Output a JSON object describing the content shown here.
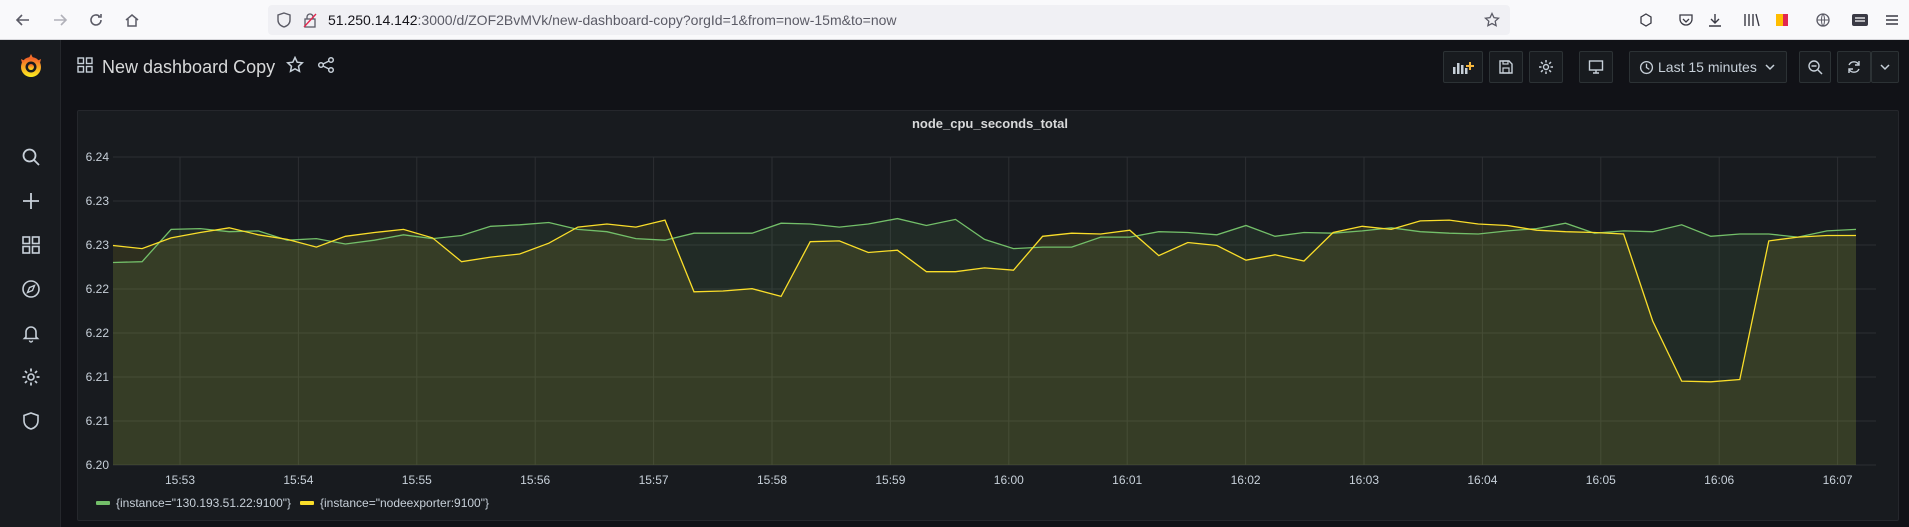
{
  "browser": {
    "url_host": "51.250.14.142",
    "url_path": ":3000/d/ZOF2BvMVk/new-dashboard-copy?orgId=1&from=now-15m&to=now"
  },
  "sidebar": {
    "items": [
      {
        "name": "search-icon"
      },
      {
        "name": "plus-icon"
      },
      {
        "name": "dashboards-icon"
      },
      {
        "name": "compass-icon"
      },
      {
        "name": "bell-icon"
      },
      {
        "name": "gear-icon"
      },
      {
        "name": "shield-icon"
      }
    ]
  },
  "header": {
    "title": "New dashboard Copy",
    "time_range": "Last 15 minutes"
  },
  "colors": {
    "series1": "#73bf69",
    "series2": "#fade2a",
    "background": "#111217",
    "panel": "#181b1f"
  },
  "chart_data": {
    "type": "area",
    "title": "node_cpu_seconds_total",
    "xlabel": "",
    "ylabel": "",
    "ylim": [
      6.2,
      6.24
    ],
    "yticks": [
      "6.24",
      "6.23",
      "6.23",
      "6.22",
      "6.22",
      "6.21",
      "6.21",
      "6.20"
    ],
    "xticks": [
      "15:53",
      "15:54",
      "15:55",
      "15:56",
      "15:57",
      "15:58",
      "15:59",
      "16:00",
      "16:01",
      "16:02",
      "16:03",
      "16:04",
      "16:05",
      "16:06",
      "16:07"
    ],
    "grid": true,
    "legend_position": "bottom-left",
    "series": [
      {
        "name": "{instance=\"130.193.51.22:9100\"}",
        "color": "#73bf69",
        "values": [
          6.2263,
          6.2264,
          6.2306,
          6.2307,
          6.2303,
          6.2304,
          6.2292,
          6.2294,
          6.2287,
          6.2292,
          6.2299,
          6.2294,
          6.2298,
          6.231,
          6.2312,
          6.2315,
          6.2306,
          6.2303,
          6.2294,
          6.2292,
          6.2301,
          6.2301,
          6.2301,
          6.2314,
          6.2313,
          6.2309,
          6.2313,
          6.232,
          6.2311,
          6.2319,
          6.2293,
          6.2281,
          6.2283,
          6.2283,
          6.2296,
          6.2296,
          6.2303,
          6.2302,
          6.2299,
          6.2311,
          6.2297,
          6.2302,
          6.2301,
          6.2304,
          6.2308,
          6.2303,
          6.2301,
          6.23,
          6.2304,
          6.2307,
          6.2314,
          6.2301,
          6.2304,
          6.2303,
          6.2312,
          6.2297,
          6.23,
          6.23,
          6.2296,
          6.2304,
          6.2306
        ]
      },
      {
        "name": "{instance=\"nodeexporter:9100\"}",
        "color": "#fade2a",
        "values": [
          6.2285,
          6.2281,
          6.2295,
          6.2302,
          6.2308,
          6.2299,
          6.2293,
          6.2283,
          6.2297,
          6.2302,
          6.2306,
          6.2295,
          6.2264,
          6.227,
          6.2274,
          6.2288,
          6.2309,
          6.2313,
          6.2309,
          6.2318,
          6.2225,
          6.2226,
          6.2229,
          6.2219,
          6.229,
          6.2291,
          6.2276,
          6.2279,
          6.2251,
          6.2251,
          6.2256,
          6.2253,
          6.2297,
          6.2301,
          6.23,
          6.2305,
          6.2272,
          6.2289,
          6.2285,
          6.2266,
          6.2273,
          6.2265,
          6.2302,
          6.231,
          6.2306,
          6.2317,
          6.2318,
          6.2313,
          6.2311,
          6.2305,
          6.2303,
          6.2302,
          6.23,
          6.2187,
          6.2109,
          6.2108,
          6.2111,
          6.2291,
          6.2296,
          6.2298,
          6.2298
        ]
      }
    ]
  }
}
